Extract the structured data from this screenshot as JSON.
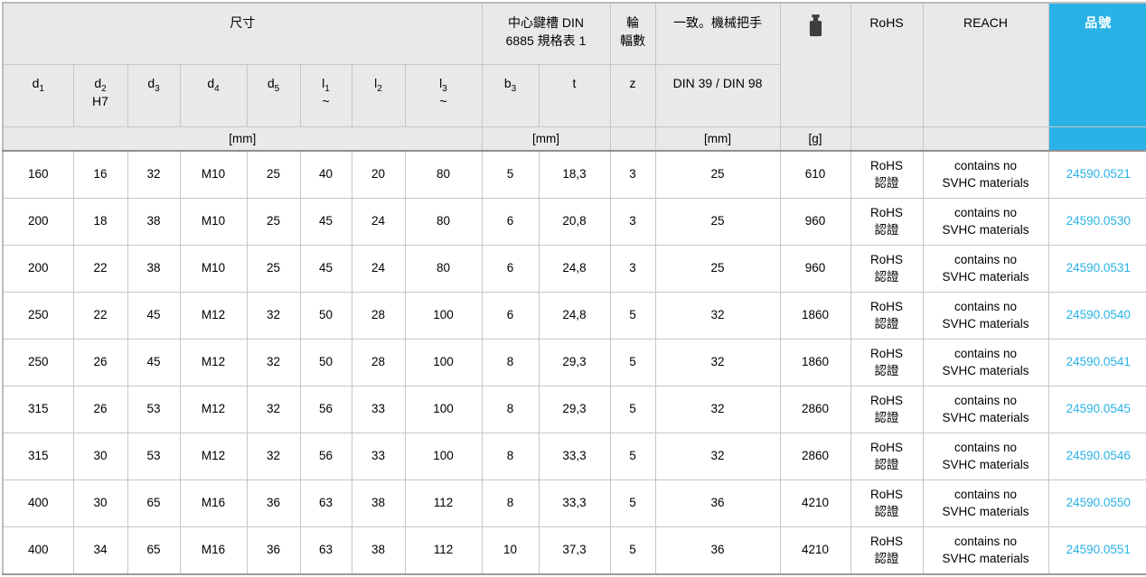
{
  "colors": {
    "accent_cyan": "#29b2e6",
    "header_bg": "#e9e9e9",
    "grid_border": "#c6c6c6",
    "header_divider": "#8f8f8f",
    "weight_icon": "#3d3d3d",
    "text": "#000000"
  },
  "table": {
    "sections": {
      "dimensions": "尺寸",
      "keyway_line1": "中心鍵槽 DIN",
      "keyway_line2": "6885 規格表 1",
      "spokes_line1": "輪",
      "spokes_line2": "輻數",
      "handle": "一致。機械把手",
      "rohs": "RoHS",
      "reach": "REACH",
      "part_no": "品號"
    },
    "subheaders": {
      "d1": {
        "base": "d",
        "sub": "1",
        "line2": ""
      },
      "d2": {
        "base": "d",
        "sub": "2",
        "line2": "H7"
      },
      "d3": {
        "base": "d",
        "sub": "3",
        "line2": ""
      },
      "d4": {
        "base": "d",
        "sub": "4",
        "line2": ""
      },
      "d5": {
        "base": "d",
        "sub": "5",
        "line2": ""
      },
      "l1": {
        "base": "l",
        "sub": "1",
        "line2": "~"
      },
      "l2": {
        "base": "l",
        "sub": "2",
        "line2": ""
      },
      "l3": {
        "base": "l",
        "sub": "3",
        "line2": "~"
      },
      "b3": {
        "base": "b",
        "sub": "3",
        "line2": ""
      },
      "t": {
        "base": "t",
        "sub": "",
        "line2": ""
      },
      "z": {
        "base": "z",
        "sub": "",
        "line2": ""
      },
      "handle_din": "DIN 39 / DIN 98"
    },
    "units": {
      "mm": "[mm]",
      "g": "[g]"
    },
    "rohs_cell_lines": [
      "RoHS",
      "認證"
    ],
    "reach_cell_lines": [
      "contains no",
      "SVHC materials"
    ],
    "rows": [
      {
        "d1": "160",
        "d2": "16",
        "d3": "32",
        "d4": "M10",
        "d5": "25",
        "l1": "40",
        "l2": "20",
        "l3": "80",
        "b3": "5",
        "t": "18,3",
        "z": "3",
        "handle_mm": "25",
        "weight_g": "610",
        "part_no": "24590.0521"
      },
      {
        "d1": "200",
        "d2": "18",
        "d3": "38",
        "d4": "M10",
        "d5": "25",
        "l1": "45",
        "l2": "24",
        "l3": "80",
        "b3": "6",
        "t": "20,8",
        "z": "3",
        "handle_mm": "25",
        "weight_g": "960",
        "part_no": "24590.0530"
      },
      {
        "d1": "200",
        "d2": "22",
        "d3": "38",
        "d4": "M10",
        "d5": "25",
        "l1": "45",
        "l2": "24",
        "l3": "80",
        "b3": "6",
        "t": "24,8",
        "z": "3",
        "handle_mm": "25",
        "weight_g": "960",
        "part_no": "24590.0531"
      },
      {
        "d1": "250",
        "d2": "22",
        "d3": "45",
        "d4": "M12",
        "d5": "32",
        "l1": "50",
        "l2": "28",
        "l3": "100",
        "b3": "6",
        "t": "24,8",
        "z": "5",
        "handle_mm": "32",
        "weight_g": "1860",
        "part_no": "24590.0540"
      },
      {
        "d1": "250",
        "d2": "26",
        "d3": "45",
        "d4": "M12",
        "d5": "32",
        "l1": "50",
        "l2": "28",
        "l3": "100",
        "b3": "8",
        "t": "29,3",
        "z": "5",
        "handle_mm": "32",
        "weight_g": "1860",
        "part_no": "24590.0541"
      },
      {
        "d1": "315",
        "d2": "26",
        "d3": "53",
        "d4": "M12",
        "d5": "32",
        "l1": "56",
        "l2": "33",
        "l3": "100",
        "b3": "8",
        "t": "29,3",
        "z": "5",
        "handle_mm": "32",
        "weight_g": "2860",
        "part_no": "24590.0545"
      },
      {
        "d1": "315",
        "d2": "30",
        "d3": "53",
        "d4": "M12",
        "d5": "32",
        "l1": "56",
        "l2": "33",
        "l3": "100",
        "b3": "8",
        "t": "33,3",
        "z": "5",
        "handle_mm": "32",
        "weight_g": "2860",
        "part_no": "24590.0546"
      },
      {
        "d1": "400",
        "d2": "30",
        "d3": "65",
        "d4": "M16",
        "d5": "36",
        "l1": "63",
        "l2": "38",
        "l3": "112",
        "b3": "8",
        "t": "33,3",
        "z": "5",
        "handle_mm": "36",
        "weight_g": "4210",
        "part_no": "24590.0550"
      },
      {
        "d1": "400",
        "d2": "34",
        "d3": "65",
        "d4": "M16",
        "d5": "36",
        "l1": "63",
        "l2": "38",
        "l3": "112",
        "b3": "10",
        "t": "37,3",
        "z": "5",
        "handle_mm": "36",
        "weight_g": "4210",
        "part_no": "24590.0551"
      }
    ]
  }
}
